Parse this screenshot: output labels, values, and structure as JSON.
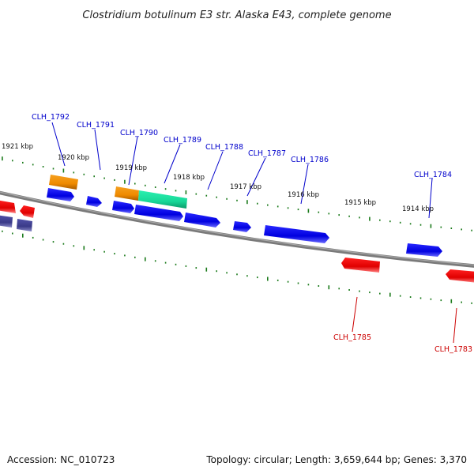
{
  "title": "Clostridium botulinum E3 str. Alaska E43, complete genome",
  "footer": {
    "accession": "Accession: NC_010723",
    "summary": "Topology: circular; Length: 3,659,644 bp; Genes: 3,370"
  },
  "colors": {
    "backbone": "#808080",
    "tick": "#1a7a1a",
    "forward_gene": "#0000e6",
    "reverse_gene": "#e60000",
    "label_forward": "#0000cc",
    "label_reverse": "#cc0000",
    "orange_feature": "#f08c00",
    "teal_feature": "#20e0a0",
    "purple_feature": "#404090"
  },
  "ticks": [
    {
      "label": "1921 kbp"
    },
    {
      "label": "1920 kbp"
    },
    {
      "label": "1919 kbp"
    },
    {
      "label": "1918 kbp"
    },
    {
      "label": "1917 kbp"
    },
    {
      "label": "1916 kbp"
    },
    {
      "label": "1915 kbp"
    },
    {
      "label": "1914 kbp"
    }
  ],
  "gene_labels": [
    {
      "text": "CLH_1792",
      "strand": "forward"
    },
    {
      "text": "CLH_1791",
      "strand": "forward"
    },
    {
      "text": "CLH_1790",
      "strand": "forward"
    },
    {
      "text": "CLH_1789",
      "strand": "forward"
    },
    {
      "text": "CLH_1788",
      "strand": "forward"
    },
    {
      "text": "CLH_1787",
      "strand": "forward"
    },
    {
      "text": "CLH_1786",
      "strand": "forward"
    },
    {
      "text": "CLH_1784",
      "strand": "forward"
    },
    {
      "text": "CLH_1785",
      "strand": "reverse"
    },
    {
      "text": "CLH_1783",
      "strand": "reverse"
    }
  ]
}
